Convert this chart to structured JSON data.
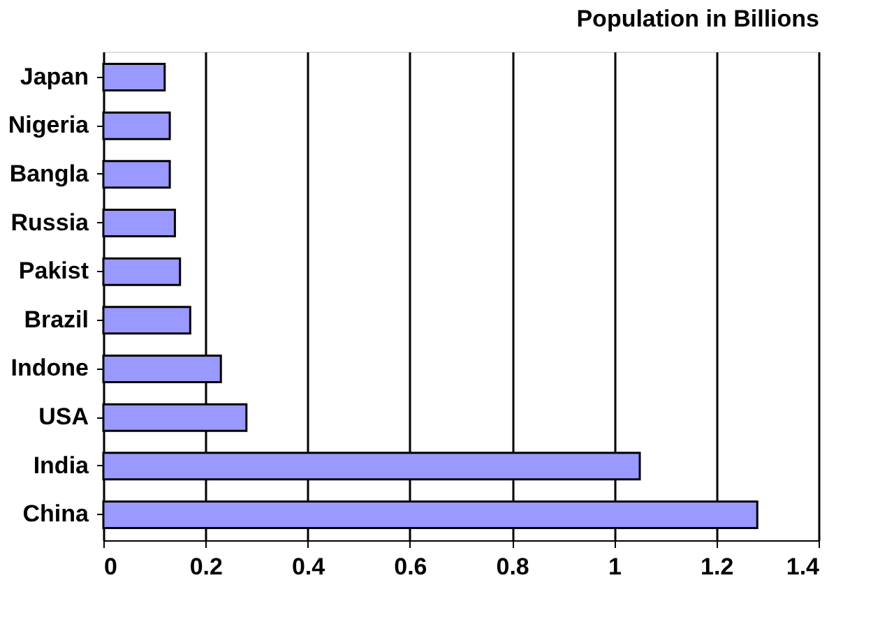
{
  "chart_data": {
    "type": "bar",
    "orientation": "horizontal",
    "title": "Population in Billions",
    "categories": [
      "Japan",
      "Nigeria",
      "Bangla",
      "Russia",
      "Pakist",
      "Brazil",
      "Indone",
      "USA",
      "India",
      "China"
    ],
    "values": [
      0.12,
      0.13,
      0.13,
      0.14,
      0.15,
      0.17,
      0.23,
      0.28,
      1.05,
      1.28
    ],
    "color": "#9999ff",
    "xlim": [
      0,
      1.4
    ],
    "xticks": [
      0,
      0.2,
      0.4,
      0.6,
      0.8,
      1,
      1.2,
      1.4
    ],
    "grid": "x"
  }
}
